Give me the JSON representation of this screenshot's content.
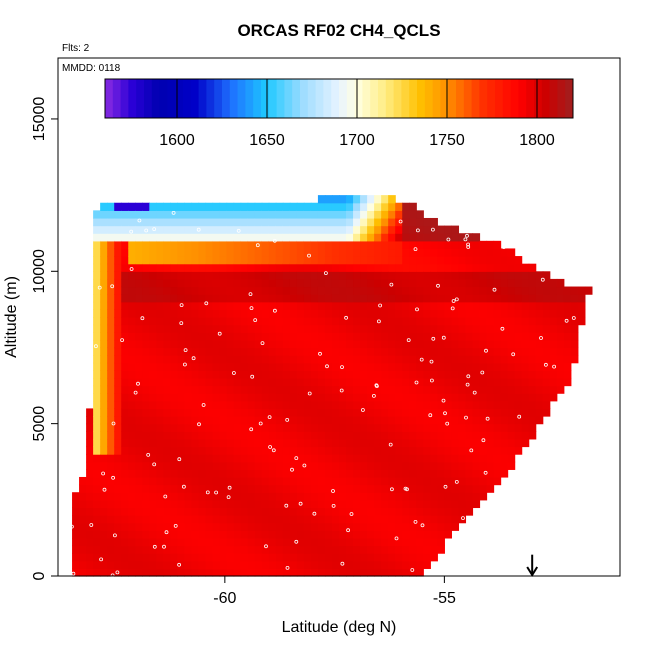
{
  "chart_data": {
    "type": "heatmap",
    "title": "ORCAS RF02 CH4_QCLS",
    "flights_label": "Flts: 2",
    "date_label": "MMDD: 0118",
    "xlabel": "Latitude (deg N)",
    "ylabel": "Altitude (m)",
    "xlim": [
      -63.8,
      -51.0
    ],
    "ylim": [
      0,
      17000
    ],
    "xticks": [
      -60,
      -55
    ],
    "xtick_labels": [
      "-60",
      "-55"
    ],
    "yticks": [
      0,
      5000,
      10000,
      15000
    ],
    "ytick_labels": [
      "0",
      "5000",
      "10000",
      "15000"
    ],
    "colorbar": {
      "range": [
        1560,
        1820
      ],
      "ticks": [
        1600,
        1650,
        1700,
        1750,
        1800
      ],
      "tick_labels": [
        "1600",
        "1650",
        "1700",
        "1750",
        "1800"
      ],
      "colors": [
        [
          1560,
          "#8a2be2"
        ],
        [
          1575,
          "#2a00d6"
        ],
        [
          1590,
          "#0000b0"
        ],
        [
          1610,
          "#0000c8"
        ],
        [
          1630,
          "#1e6fff"
        ],
        [
          1650,
          "#1ec8ff"
        ],
        [
          1670,
          "#9edcff"
        ],
        [
          1690,
          "#e8f4ff"
        ],
        [
          1700,
          "#ffffe0"
        ],
        [
          1715,
          "#ffee88"
        ],
        [
          1735,
          "#ffc000"
        ],
        [
          1750,
          "#ff9000"
        ],
        [
          1770,
          "#ff3000"
        ],
        [
          1790,
          "#ff0000"
        ],
        [
          1805,
          "#cc0000"
        ],
        [
          1820,
          "#a02020"
        ]
      ]
    },
    "profile_boundary": [
      [
        -63.5,
        0
      ],
      [
        -63.5,
        2200
      ],
      [
        -63.1,
        4000
      ],
      [
        -63.0,
        12000
      ],
      [
        -62.6,
        12300
      ],
      [
        -56.3,
        12400
      ],
      [
        -55.8,
        12300
      ],
      [
        -55.5,
        11800
      ],
      [
        -54.5,
        11300
      ],
      [
        -53.6,
        10800
      ],
      [
        -52.6,
        9800
      ],
      [
        -51.7,
        9400
      ],
      [
        -51.9,
        8000
      ],
      [
        -52.1,
        6500
      ],
      [
        -52.6,
        5500
      ],
      [
        -53.6,
        3300
      ],
      [
        -54.4,
        2200
      ],
      [
        -55.0,
        1000
      ],
      [
        -55.6,
        0
      ]
    ],
    "layers": [
      {
        "alt_min": 0,
        "alt_max": 9000,
        "value": 1795
      },
      {
        "alt_min": 9000,
        "alt_max": 10000,
        "value": 1805
      },
      {
        "alt_min": 10000,
        "alt_max": 11000,
        "value": 1790
      },
      {
        "alt_min": 11000,
        "alt_max": 12400,
        "value": 1812
      }
    ],
    "features": [
      {
        "name": "low-ch4-upper-layer",
        "lat_min": -63.0,
        "lat_max": -56.0,
        "alt_min": 11000,
        "alt_max": 12400,
        "value": 1650
      },
      {
        "name": "lowest-ch4-core",
        "lat_min": -62.5,
        "lat_max": -61.8,
        "alt_min": 12050,
        "alt_max": 12300,
        "value": 1575
      },
      {
        "name": "transition-layer",
        "lat_min": -62.2,
        "lat_max": -56.0,
        "alt_min": 10300,
        "alt_max": 11000,
        "value": 1740
      },
      {
        "name": "edge-column",
        "lat_min": -63.0,
        "lat_max": -62.4,
        "alt_min": 4000,
        "alt_max": 11000,
        "value": 1715
      }
    ],
    "arrow_marker": {
      "lat": -53.0,
      "alt_top": 700
    }
  }
}
